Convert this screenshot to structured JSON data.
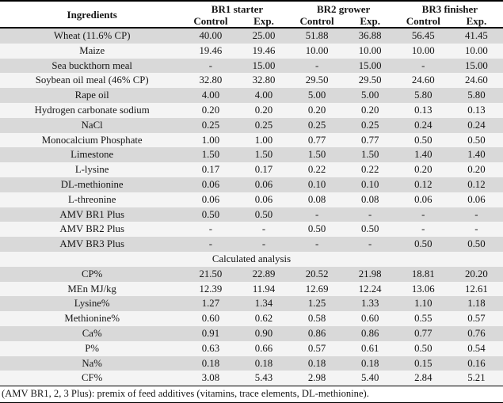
{
  "colors": {
    "row_shade_dark": "#d9d9d9",
    "row_shade_light": "#f4f4f4",
    "border": "#000000",
    "text": "#161616"
  },
  "table": {
    "ingredients_header": "Ingredients",
    "groups": [
      "BR1 starter",
      "BR2 grower",
      "BR3 finisher"
    ],
    "sub_headers": [
      "Control",
      "Exp.",
      "Control",
      "Exp.",
      "Control",
      "Exp."
    ],
    "rows": [
      {
        "label": "Wheat (11.6% CP)",
        "values": [
          "40.00",
          "25.00",
          "51.88",
          "36.88",
          "56.45",
          "41.45"
        ]
      },
      {
        "label": "Maize",
        "values": [
          "19.46",
          "19.46",
          "10.00",
          "10.00",
          "10.00",
          "10.00"
        ]
      },
      {
        "label": "Sea buckthorn meal",
        "values": [
          "-",
          "15.00",
          "-",
          "15.00",
          "-",
          "15.00"
        ]
      },
      {
        "label": "Soybean oil meal (46% CP)",
        "values": [
          "32.80",
          "32.80",
          "29.50",
          "29.50",
          "24.60",
          "24.60"
        ]
      },
      {
        "label": "Rape oil",
        "values": [
          "4.00",
          "4.00",
          "5.00",
          "5.00",
          "5.80",
          "5.80"
        ]
      },
      {
        "label": "Hydrogen carbonate sodium",
        "values": [
          "0.20",
          "0.20",
          "0.20",
          "0.20",
          "0.13",
          "0.13"
        ]
      },
      {
        "label": "NaCl",
        "values": [
          "0.25",
          "0.25",
          "0.25",
          "0.25",
          "0.24",
          "0.24"
        ]
      },
      {
        "label": "Monocalcium Phosphate",
        "values": [
          "1.00",
          "1.00",
          "0.77",
          "0.77",
          "0.50",
          "0.50"
        ]
      },
      {
        "label": "Limestone",
        "values": [
          "1.50",
          "1.50",
          "1.50",
          "1.50",
          "1.40",
          "1.40"
        ]
      },
      {
        "label": "L-lysine",
        "values": [
          "0.17",
          "0.17",
          "0.22",
          "0.22",
          "0.20",
          "0.20"
        ]
      },
      {
        "label": "DL-methionine",
        "values": [
          "0.06",
          "0.06",
          "0.10",
          "0.10",
          "0.12",
          "0.12"
        ]
      },
      {
        "label": "L-threonine",
        "values": [
          "0.06",
          "0.06",
          "0.08",
          "0.08",
          "0.06",
          "0.06"
        ]
      },
      {
        "label": "AMV BR1 Plus",
        "values": [
          "0.50",
          "0.50",
          "-",
          "-",
          "-",
          "-"
        ]
      },
      {
        "label": "AMV BR2 Plus",
        "values": [
          "-",
          "-",
          "0.50",
          "0.50",
          "-",
          "-"
        ]
      },
      {
        "label": "AMV BR3 Plus",
        "values": [
          "-",
          "-",
          "-",
          "-",
          "0.50",
          "0.50"
        ]
      },
      {
        "section": "Calculated analysis"
      },
      {
        "label": "CP%",
        "values": [
          "21.50",
          "22.89",
          "20.52",
          "21.98",
          "18.81",
          "20.20"
        ]
      },
      {
        "label": "MEn MJ/kg",
        "values": [
          "12.39",
          "11.94",
          "12.69",
          "12.24",
          "13.06",
          "12.61"
        ]
      },
      {
        "label": "Lysine%",
        "values": [
          "1.27",
          "1.34",
          "1.25",
          "1.33",
          "1.10",
          "1.18"
        ]
      },
      {
        "label": "Methionine%",
        "values": [
          "0.60",
          "0.62",
          "0.58",
          "0.60",
          "0.55",
          "0.57"
        ]
      },
      {
        "label": "Ca%",
        "values": [
          "0.91",
          "0.90",
          "0.86",
          "0.86",
          "0.77",
          "0.76"
        ]
      },
      {
        "label": "P%",
        "values": [
          "0.63",
          "0.66",
          "0.57",
          "0.61",
          "0.50",
          "0.54"
        ]
      },
      {
        "label": "Na%",
        "values": [
          "0.18",
          "0.18",
          "0.18",
          "0.18",
          "0.15",
          "0.16"
        ]
      },
      {
        "label": "CF%",
        "values": [
          "3.08",
          "5.43",
          "2.98",
          "5.40",
          "2.84",
          "5.21"
        ]
      }
    ],
    "footnote": "(AMV BR1, 2, 3 Plus): premix of feed additives (vitamins, trace elements, DL-methionine)."
  }
}
